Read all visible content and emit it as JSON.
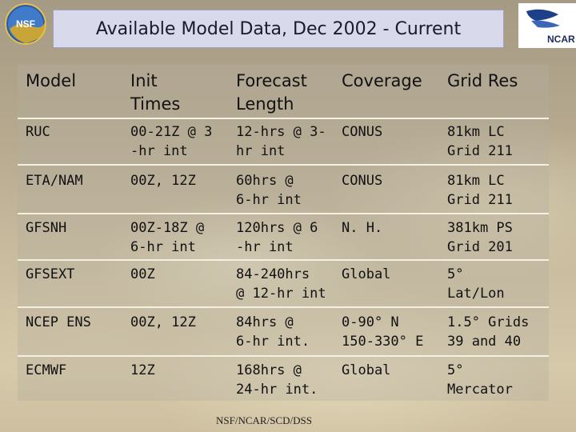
{
  "title": "Available Model Data, Dec 2002 - Current",
  "logos": {
    "right_text": "NCAR"
  },
  "headers": [
    "Model",
    "Init\nTimes",
    "Forecast\nLength",
    "Coverage",
    "Grid Res"
  ],
  "rows": [
    [
      "RUC",
      "00-21Z @ 3\n-hr int",
      "12-hrs @ 3-\nhr int",
      "CONUS",
      "81km LC\nGrid 211"
    ],
    [
      "ETA/NAM",
      "00Z, 12Z",
      "60hrs @\n6-hr int",
      "CONUS",
      "81km LC\nGrid 211"
    ],
    [
      "GFSNH",
      "00Z-18Z @\n6-hr int",
      "120hrs @ 6\n-hr int",
      "N. H.",
      "381km PS\nGrid 201"
    ],
    [
      "GFSEXT",
      "00Z",
      "84-240hrs\n@ 12-hr int",
      "Global",
      "5°\nLat/Lon"
    ],
    [
      "NCEP ENS",
      "00Z, 12Z",
      "84hrs @\n6-hr int.",
      "0-90° N\n150-330° E",
      "1.5° Grids\n39 and 40"
    ],
    [
      "ECMWF",
      "12Z",
      "168hrs @\n24-hr int.",
      "Global",
      "5°\nMercator"
    ]
  ],
  "footer": "NSF/NCAR/SCD/DSS"
}
